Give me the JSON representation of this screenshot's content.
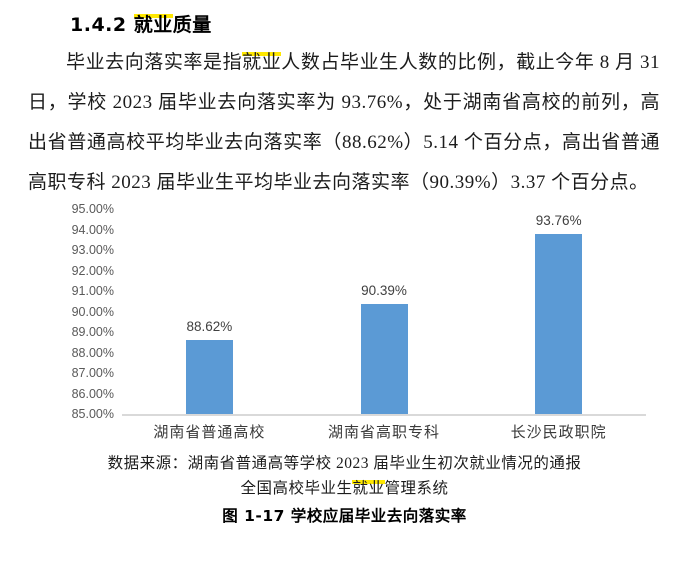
{
  "page": {
    "heading_segments": [
      {
        "text": "1.4.2 ",
        "highlight": false
      },
      {
        "text": "就业",
        "highlight": true
      },
      {
        "text": "质量",
        "highlight": false
      }
    ],
    "paragraph_segments": [
      {
        "text": "毕业去向落实率是指",
        "highlight": false
      },
      {
        "text": "就业",
        "highlight": true
      },
      {
        "text": "人数占毕业生人数的比例，截止今年 8 月 31 日，学校 2023 届毕业去向落实率为 93.76%，处于湖南省高校的前列，高出省普通高校平均毕业去向落实率（88.62%）5.14 个百分点，高出省普通高职专科 2023 届毕业生平均毕业去向落实率（90.39%）3.37 个百分点。",
        "highlight": false
      }
    ],
    "source_line1": "数据来源：湖南省普通高等学校 2023 届毕业生初次就业情况的通报",
    "source_line2_segments": [
      {
        "text": "全国高校毕业生",
        "highlight": false
      },
      {
        "text": "就业",
        "highlight": true
      },
      {
        "text": "管理系统",
        "highlight": false
      }
    ],
    "caption": "图 1-17 学校应届毕业去向落实率"
  },
  "colors": {
    "bar": "#5b9ad5",
    "highlight": "#ffe800",
    "axis_line": "#d9d9d9",
    "tick_label": "#595959",
    "data_label": "#404040"
  },
  "chart_data": {
    "type": "bar",
    "categories": [
      "湖南省普通高校",
      "湖南省高职专科",
      "长沙民政职院"
    ],
    "values": [
      88.62,
      90.39,
      93.76
    ],
    "value_labels": [
      "88.62%",
      "90.39%",
      "93.76%"
    ],
    "title": "",
    "xlabel": "",
    "ylabel": "",
    "ylim": [
      85,
      95
    ],
    "ytick_step": 1,
    "yticks": [
      "95.00%",
      "94.00%",
      "93.00%",
      "92.00%",
      "91.00%",
      "90.00%",
      "89.00%",
      "88.00%",
      "87.00%",
      "86.00%",
      "85.00%"
    ],
    "grid": false,
    "legend_position": "none",
    "bar_color": "#5b9ad5"
  }
}
